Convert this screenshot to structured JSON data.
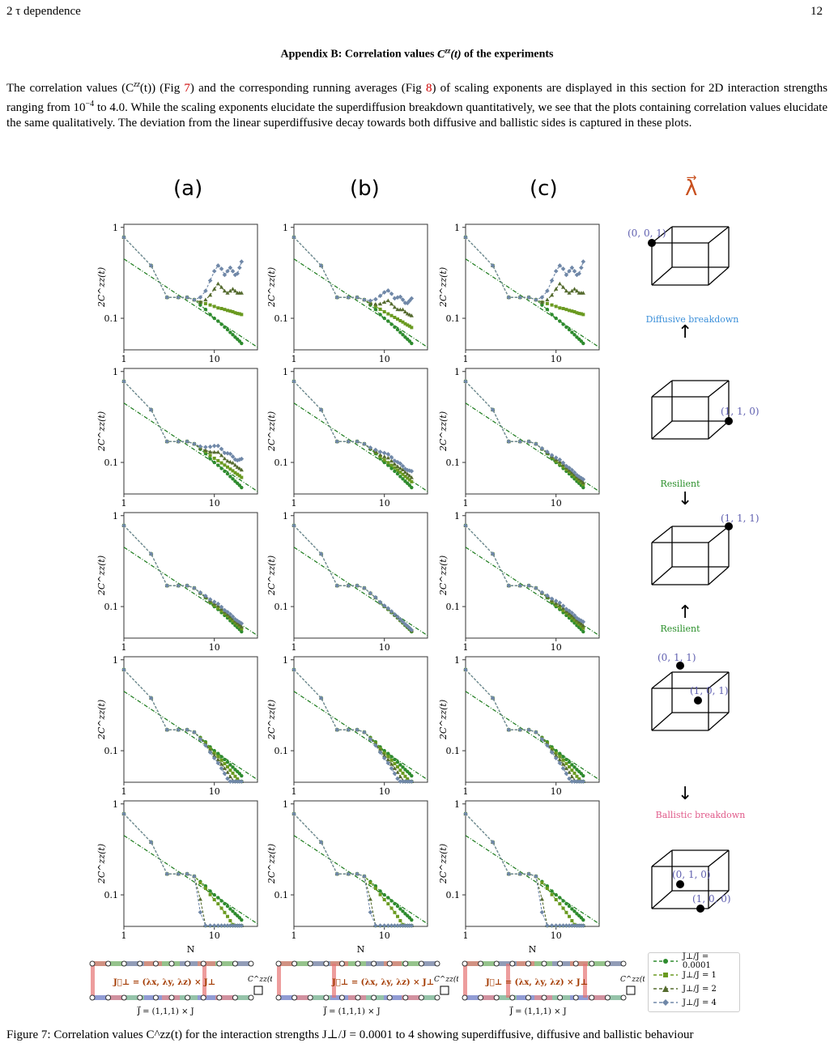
{
  "header": {
    "section": "2   τ dependence",
    "page_number": "12"
  },
  "appendix_title": "Appendix B: Correlation values C^zz(t) of the experiments",
  "paragraph": {
    "part1": "The correlation values (C",
    "part2": "(t)) (Fig ",
    "fig7": "7",
    "part3": ") and the corresponding running averages (Fig ",
    "fig8": "8",
    "part4": ") of scaling exponents are displayed in this section for 2D interaction strengths ranging from 10",
    "part5": " to 4.0. While the scaling exponents elucidate the superdiffusion breakdown quantitatively, we see that the plots containing correlation values elucidate the same qualitatively. The deviation from the linear superdiffusive decay towards both diffusive and ballistic sides is captured in these plots."
  },
  "columns": [
    "(a)",
    "(b)",
    "(c)"
  ],
  "lambda_label": "λ⃗",
  "axis": {
    "ylabel": "2C^zz(t)",
    "xlabel": "N",
    "yticks": [
      "1",
      "0.1"
    ],
    "xticks": [
      "1",
      "10"
    ]
  },
  "cubes": [
    {
      "points": [
        "(0, 0, 1)"
      ]
    },
    {
      "points": [
        "(1, 1, 0)"
      ]
    },
    {
      "points": [
        "(1, 1, 1)"
      ]
    },
    {
      "points": [
        "(0, 1, 1)",
        "(1, 0, 1)"
      ]
    },
    {
      "points": [
        "(0, 1, 0)",
        "(1, 0, 0)"
      ]
    }
  ],
  "annotations": {
    "diffusive": "Diffusive breakdown",
    "resilient1": "Resilient",
    "resilient2": "Resilient",
    "ballistic": "Ballistic breakdown"
  },
  "colors": {
    "diffusive": "#3b8fd9",
    "resilient": "#2a8f2a",
    "ballistic": "#e05a8a",
    "point_label": "#6060b0"
  },
  "lattice": {
    "jperp": "J⃗⊥ = (λx, λy, λz) × J⊥",
    "j": "J⃗ = (1,1,1) × J",
    "czz": "C^zz(t)"
  },
  "legend": [
    "J⊥/J = 0.0001",
    "J⊥/J = 1",
    "J⊥/J = 2",
    "J⊥/J = 4"
  ],
  "bottom_text": "Figure 7: Correlation values C^zz(t) for the interaction strengths J⊥/J = 0.0001 to 4 showing superdiffusive, diffusive and ballistic behaviour",
  "chart_data": {
    "type": "line",
    "note_grid": "5 rows × 3 columns of log-log panels",
    "xlim": [
      1,
      30
    ],
    "ylim": [
      0.045,
      1
    ],
    "x": [
      1,
      2,
      3,
      4,
      5,
      6,
      7,
      8,
      9,
      10,
      11,
      12,
      13,
      14,
      15,
      16,
      17,
      18,
      19,
      20
    ],
    "series": [
      {
        "name": "J⊥/J = 0.0001",
        "values": [
          0.78,
          0.38,
          0.17,
          0.17,
          0.17,
          0.16,
          0.14,
          0.125,
          0.11,
          0.1,
          0.093,
          0.086,
          0.08,
          0.075,
          0.07,
          0.066,
          0.062,
          0.059,
          0.056,
          0.053
        ]
      },
      {
        "name": "J⊥/J = 1",
        "values": [
          0.78,
          0.36,
          0.17,
          0.17,
          0.17,
          0.155,
          0.15,
          0.145,
          0.14,
          0.135,
          0.13,
          0.128,
          0.125,
          0.122,
          0.12,
          0.118,
          0.115,
          0.113,
          0.112,
          0.11
        ]
      },
      {
        "name": "J⊥/J = 2",
        "values": [
          0.78,
          0.36,
          0.17,
          0.17,
          0.17,
          0.15,
          0.15,
          0.16,
          0.18,
          0.21,
          0.24,
          0.22,
          0.2,
          0.19,
          0.2,
          0.21,
          0.2,
          0.19,
          0.19,
          0.19
        ]
      },
      {
        "name": "J⊥/J = 4",
        "values": [
          0.78,
          0.36,
          0.17,
          0.17,
          0.17,
          0.15,
          0.17,
          0.2,
          0.26,
          0.33,
          0.38,
          0.35,
          0.3,
          0.33,
          0.36,
          0.33,
          0.3,
          0.31,
          0.36,
          0.42
        ]
      }
    ]
  }
}
